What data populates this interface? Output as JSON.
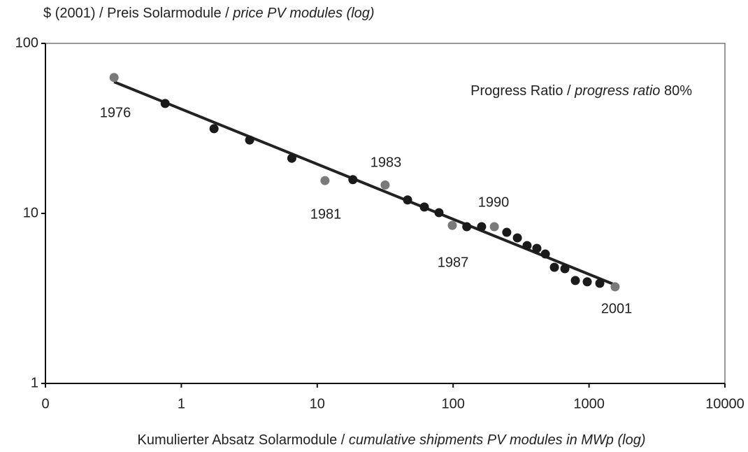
{
  "chart_data": {
    "type": "scatter",
    "ylabel": [
      "$ (2001) / Preis Solarmodule / ",
      "price PV modules (log)"
    ],
    "xlabel": [
      "Kumulierter Absatz Solarmodule / ",
      "cumulative shipments PV modules in MWp (log)"
    ],
    "x": [
      0.32,
      0.76,
      1.74,
      3.18,
      6.5,
      11.4,
      18.3,
      31.6,
      46.2,
      61.4,
      78.7,
      98.6,
      126,
      162,
      201,
      248,
      297,
      350,
      413,
      477,
      556,
      664,
      793,
      970,
      1200,
      1556
    ],
    "values": [
      63,
      44.3,
      31.5,
      27,
      21.1,
      15.6,
      15.8,
      14.7,
      12.0,
      10.9,
      10.1,
      8.5,
      8.35,
      8.35,
      8.35,
      7.74,
      7.18,
      6.47,
      6.23,
      5.77,
      4.82,
      4.73,
      4.03,
      3.96,
      3.88,
      3.7
    ],
    "colors": [
      "#7a7a7a",
      "#1a1a1a",
      "#1a1a1a",
      "#1a1a1a",
      "#1a1a1a",
      "#7a7a7a",
      "#1a1a1a",
      "#7a7a7a",
      "#1a1a1a",
      "#1a1a1a",
      "#1a1a1a",
      "#7a7a7a",
      "#1a1a1a",
      "#1a1a1a",
      "#7a7a7a",
      "#1a1a1a",
      "#1a1a1a",
      "#1a1a1a",
      "#1a1a1a",
      "#1a1a1a",
      "#1a1a1a",
      "#1a1a1a",
      "#1a1a1a",
      "#1a1a1a",
      "#1a1a1a",
      "#7a7a7a"
    ],
    "trend": {
      "x": [
        0.32,
        1556
      ],
      "values": [
        59.4,
        3.8
      ],
      "color": "#222222"
    },
    "annotations": [
      "1976",
      "1981",
      "1983",
      "1987",
      "1990",
      "2001"
    ],
    "ratio_text": [
      "Progress Ratio / ",
      "progress ratio",
      " 80%"
    ],
    "xscale": "log",
    "yscale": "log",
    "xlim": [
      0.1,
      10000
    ],
    "ylim": [
      1,
      100
    ],
    "xticks": [
      {
        "value": 0.1,
        "label": "0"
      },
      1,
      10,
      100,
      1000,
      10000
    ],
    "yticks": [
      1,
      10,
      100
    ]
  }
}
